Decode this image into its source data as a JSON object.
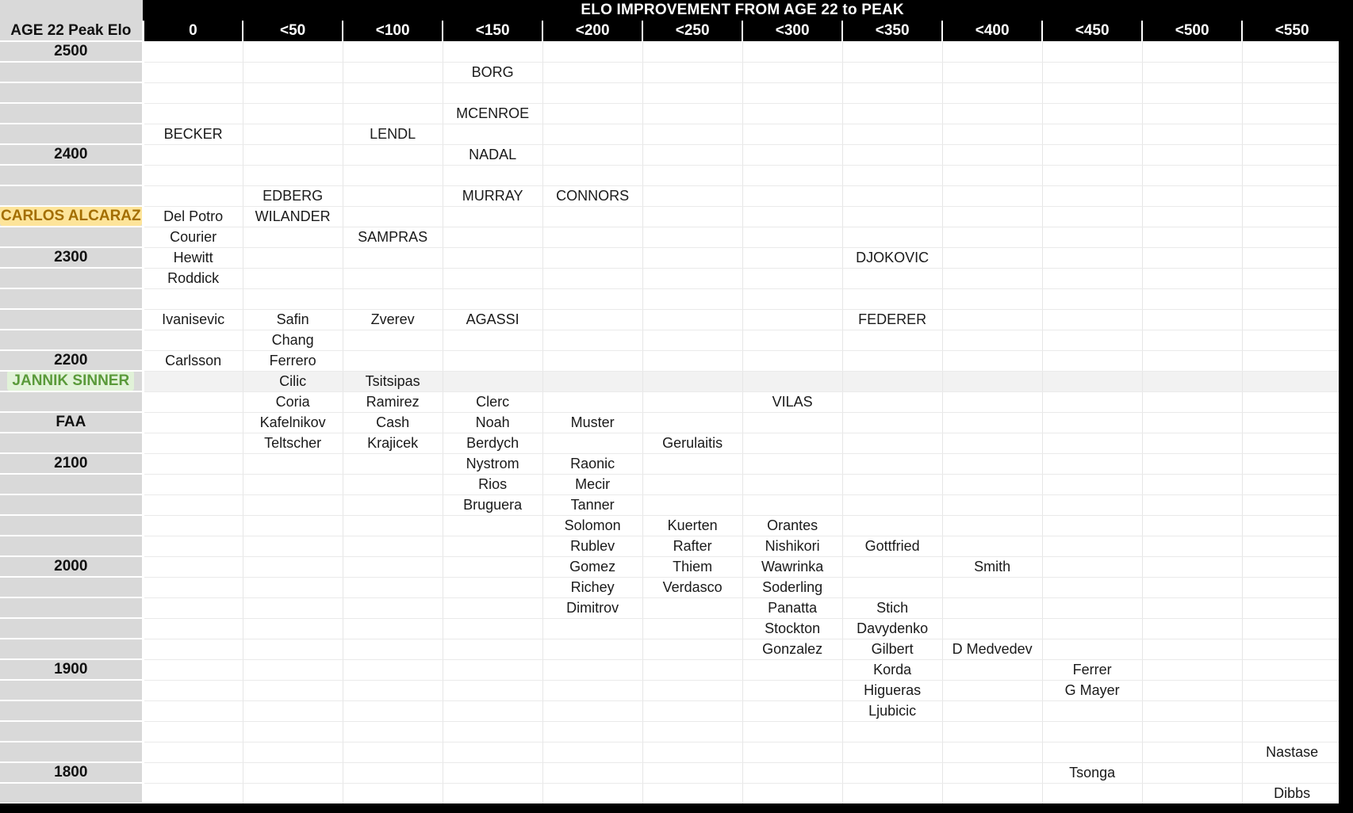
{
  "title": "ELO IMPROVEMENT FROM AGE 22 to PEAK",
  "corner_label": "AGE 22 Peak Elo",
  "columns": [
    "0",
    "<50",
    "<100",
    "<150",
    "<200",
    "<250",
    "<300",
    "<350",
    "<400",
    "<450",
    "<500",
    "<550"
  ],
  "highlight_colors": {
    "alcaraz_bg": "#fde49a",
    "alcaraz_text": "#a36e00",
    "sinner_bg": "#e1f2d8",
    "sinner_text": "#5a9a3a"
  },
  "rows": [
    {
      "label": "2500",
      "cells": [
        "",
        "",
        "",
        "",
        "",
        "",
        "",
        "",
        "",
        "",
        "",
        ""
      ]
    },
    {
      "label": "",
      "cells": [
        "",
        "",
        "",
        "BORG",
        "",
        "",
        "",
        "",
        "",
        "",
        "",
        ""
      ]
    },
    {
      "label": "",
      "cells": [
        "",
        "",
        "",
        "",
        "",
        "",
        "",
        "",
        "",
        "",
        "",
        ""
      ]
    },
    {
      "label": "",
      "cells": [
        "",
        "",
        "",
        "MCENROE",
        "",
        "",
        "",
        "",
        "",
        "",
        "",
        ""
      ]
    },
    {
      "label": "",
      "cells": [
        "BECKER",
        "",
        "LENDL",
        "",
        "",
        "",
        "",
        "",
        "",
        "",
        "",
        ""
      ]
    },
    {
      "label": "2400",
      "cells": [
        "",
        "",
        "",
        "NADAL",
        "",
        "",
        "",
        "",
        "",
        "",
        "",
        ""
      ]
    },
    {
      "label": "",
      "cells": [
        "",
        "",
        "",
        "",
        "",
        "",
        "",
        "",
        "",
        "",
        "",
        ""
      ]
    },
    {
      "label": "",
      "cells": [
        "",
        "EDBERG",
        "",
        "MURRAY",
        "CONNORS",
        "",
        "",
        "",
        "",
        "",
        "",
        ""
      ]
    },
    {
      "label": "CARLOS ALCARAZ",
      "style": "alcaraz",
      "cells": [
        "Del Potro",
        "WILANDER",
        "",
        "",
        "",
        "",
        "",
        "",
        "",
        "",
        "",
        ""
      ]
    },
    {
      "label": "",
      "cells": [
        "Courier",
        "",
        "SAMPRAS",
        "",
        "",
        "",
        "",
        "",
        "",
        "",
        "",
        ""
      ]
    },
    {
      "label": "2300",
      "cells": [
        "Hewitt",
        "",
        "",
        "",
        "",
        "",
        "",
        "DJOKOVIC",
        "",
        "",
        "",
        ""
      ]
    },
    {
      "label": "",
      "cells": [
        "Roddick",
        "",
        "",
        "",
        "",
        "",
        "",
        "",
        "",
        "",
        "",
        ""
      ]
    },
    {
      "label": "",
      "cells": [
        "",
        "",
        "",
        "",
        "",
        "",
        "",
        "",
        "",
        "",
        "",
        ""
      ]
    },
    {
      "label": "",
      "cells": [
        "Ivanisevic",
        "Safin",
        "Zverev",
        "AGASSI",
        "",
        "",
        "",
        "FEDERER",
        "",
        "",
        "",
        ""
      ]
    },
    {
      "label": "",
      "cells": [
        "",
        "Chang",
        "",
        "",
        "",
        "",
        "",
        "",
        "",
        "",
        "",
        ""
      ]
    },
    {
      "label": "2200",
      "cells": [
        "Carlsson",
        "Ferrero",
        "",
        "",
        "",
        "",
        "",
        "",
        "",
        "",
        "",
        ""
      ]
    },
    {
      "label": "JANNIK SINNER",
      "style": "sinner",
      "cells": [
        "",
        "Cilic",
        "Tsitsipas",
        "",
        "",
        "",
        "",
        "",
        "",
        "",
        "",
        ""
      ]
    },
    {
      "label": "",
      "cells": [
        "",
        "Coria",
        "Ramirez",
        "Clerc",
        "",
        "",
        "VILAS",
        "",
        "",
        "",
        "",
        ""
      ]
    },
    {
      "label": "FAA",
      "cells": [
        "",
        "Kafelnikov",
        "Cash",
        "Noah",
        "Muster",
        "",
        "",
        "",
        "",
        "",
        "",
        ""
      ]
    },
    {
      "label": "",
      "cells": [
        "",
        "Teltscher",
        "Krajicek",
        "Berdych",
        "",
        "Gerulaitis",
        "",
        "",
        "",
        "",
        "",
        ""
      ]
    },
    {
      "label": "2100",
      "cells": [
        "",
        "",
        "",
        "Nystrom",
        "Raonic",
        "",
        "",
        "",
        "",
        "",
        "",
        ""
      ]
    },
    {
      "label": "",
      "cells": [
        "",
        "",
        "",
        "Rios",
        "Mecir",
        "",
        "",
        "",
        "",
        "",
        "",
        ""
      ]
    },
    {
      "label": "",
      "cells": [
        "",
        "",
        "",
        "Bruguera",
        "Tanner",
        "",
        "",
        "",
        "",
        "",
        "",
        ""
      ]
    },
    {
      "label": "",
      "cells": [
        "",
        "",
        "",
        "",
        "Solomon",
        "Kuerten",
        "Orantes",
        "",
        "",
        "",
        "",
        ""
      ]
    },
    {
      "label": "",
      "cells": [
        "",
        "",
        "",
        "",
        "Rublev",
        "Rafter",
        "Nishikori",
        "Gottfried",
        "",
        "",
        "",
        ""
      ]
    },
    {
      "label": "2000",
      "cells": [
        "",
        "",
        "",
        "",
        "Gomez",
        "Thiem",
        "Wawrinka",
        "",
        "Smith",
        "",
        "",
        ""
      ]
    },
    {
      "label": "",
      "cells": [
        "",
        "",
        "",
        "",
        "Richey",
        "Verdasco",
        "Soderling",
        "",
        "",
        "",
        "",
        ""
      ]
    },
    {
      "label": "",
      "cells": [
        "",
        "",
        "",
        "",
        "Dimitrov",
        "",
        "Panatta",
        "Stich",
        "",
        "",
        "",
        ""
      ]
    },
    {
      "label": "",
      "cells": [
        "",
        "",
        "",
        "",
        "",
        "",
        "Stockton",
        "Davydenko",
        "",
        "",
        "",
        ""
      ]
    },
    {
      "label": "",
      "cells": [
        "",
        "",
        "",
        "",
        "",
        "",
        "Gonzalez",
        "Gilbert",
        "D Medvedev",
        "",
        "",
        ""
      ]
    },
    {
      "label": "1900",
      "cells": [
        "",
        "",
        "",
        "",
        "",
        "",
        "",
        "Korda",
        "",
        "Ferrer",
        "",
        ""
      ]
    },
    {
      "label": "",
      "cells": [
        "",
        "",
        "",
        "",
        "",
        "",
        "",
        "Higueras",
        "",
        "G Mayer",
        "",
        ""
      ]
    },
    {
      "label": "",
      "cells": [
        "",
        "",
        "",
        "",
        "",
        "",
        "",
        "Ljubicic",
        "",
        "",
        "",
        ""
      ]
    },
    {
      "label": "",
      "cells": [
        "",
        "",
        "",
        "",
        "",
        "",
        "",
        "",
        "",
        "",
        "",
        ""
      ]
    },
    {
      "label": "",
      "cells": [
        "",
        "",
        "",
        "",
        "",
        "",
        "",
        "",
        "",
        "",
        "",
        "Nastase"
      ]
    },
    {
      "label": "1800",
      "cells": [
        "",
        "",
        "",
        "",
        "",
        "",
        "",
        "",
        "",
        "Tsonga",
        "",
        ""
      ]
    },
    {
      "label": "",
      "cells": [
        "",
        "",
        "",
        "",
        "",
        "",
        "",
        "",
        "",
        "",
        "",
        "Dibbs"
      ]
    }
  ]
}
